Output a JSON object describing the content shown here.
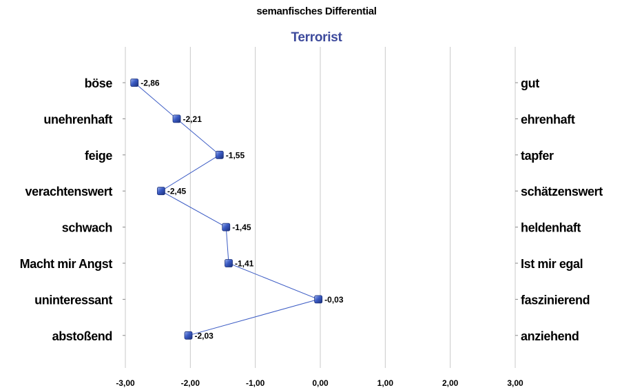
{
  "chart_data": {
    "type": "line",
    "title": "semanfisches Differential",
    "subtitle": "Terrorist",
    "x_ticks": [
      "-3,00",
      "-2,00",
      "-1,00",
      "0,00",
      "1,00",
      "2,00",
      "3,00"
    ],
    "xlim": [
      -3,
      3
    ],
    "grid": true,
    "orientation": "horizontal-values",
    "left_labels": [
      "böse",
      "unehrenhaft",
      "feige",
      "verachtenswert",
      "schwach",
      "Macht mir Angst",
      "uninteressant",
      "abstoßend"
    ],
    "right_labels": [
      "gut",
      "ehrenhaft",
      "tapfer",
      "schätzenswert",
      "heldenhaft",
      "Ist mir egal",
      "faszinierend",
      "anziehend"
    ],
    "values": [
      -2.86,
      -2.21,
      -1.55,
      -2.45,
      -1.45,
      -1.41,
      -0.03,
      -2.03
    ],
    "value_labels": [
      "-2,86",
      "-2,21",
      "-1,55",
      "-2,45",
      "-1,45",
      "-1,41",
      "-0,03",
      "-2,03"
    ],
    "colors": {
      "series": "#3b5bc4",
      "marker": "#2a4fb8",
      "subtitle": "#3d4a9c",
      "grid": "#c8c8c8"
    }
  }
}
